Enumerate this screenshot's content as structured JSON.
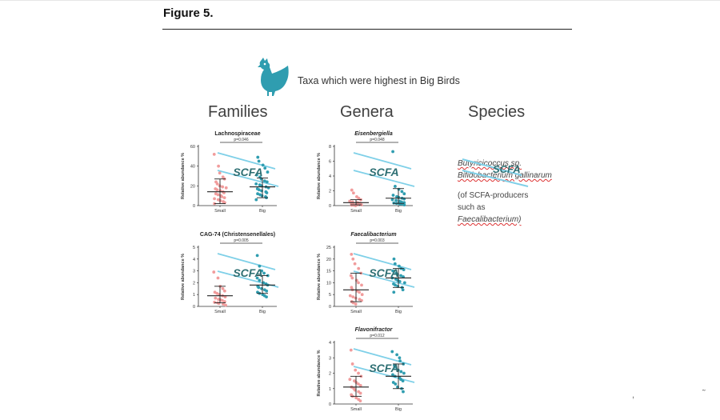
{
  "figure_label": "Figure 5.",
  "header": {
    "text": "Taxa which were highest in Big Birds",
    "icon": "chicken-icon"
  },
  "columns": {
    "families": "Families",
    "genera": "Genera",
    "species": "Species"
  },
  "species": {
    "line1": "Butyricicoccus sp.",
    "line2": "Bifidobacterium gallinarum",
    "overlay": "SCFA",
    "note1": "(of SCFA-producers",
    "note2": "such as",
    "note3": "Faecalibacterium)"
  },
  "colors": {
    "small": "#f19c9c",
    "big": "#2f9db0",
    "line": "#7fd0e8",
    "scfa_text": "#2e6f73",
    "header_gray": "#404040"
  },
  "chart_data": [
    {
      "type": "scatter",
      "title": "Lachnospiraceae",
      "title_italic": false,
      "pvalue": "p=0.046",
      "xlabel": "",
      "ylabel": "Relative abundance %",
      "ylim": [
        0,
        60
      ],
      "yticks": [
        0,
        20,
        40,
        60
      ],
      "categories": [
        "Small",
        "Big"
      ],
      "overlay": "SCFA",
      "summary": [
        {
          "name": "Small",
          "median": 14,
          "low": 2,
          "high": 27
        },
        {
          "name": "Big",
          "median": 19,
          "low": 8,
          "high": 28
        }
      ],
      "series": [
        {
          "name": "Small",
          "values": [
            52,
            40,
            33,
            29,
            27,
            24,
            22,
            20,
            19,
            18,
            17,
            16,
            15,
            14,
            13,
            12,
            11,
            10,
            9,
            8,
            7,
            6,
            5,
            4,
            3,
            2
          ]
        },
        {
          "name": "Big",
          "values": [
            49,
            45,
            41,
            38,
            34,
            31,
            29,
            27,
            25,
            24,
            22,
            21,
            20,
            19,
            18,
            17,
            16,
            15,
            14,
            13,
            12,
            11,
            10,
            9,
            8,
            6
          ]
        }
      ]
    },
    {
      "type": "scatter",
      "title": "CAG-74 (Christensenellales)",
      "title_italic": false,
      "pvalue": "p=0.005",
      "xlabel": "",
      "ylabel": "Relative abundance %",
      "ylim": [
        0,
        5
      ],
      "yticks": [
        0,
        1,
        2,
        3,
        4,
        5
      ],
      "categories": [
        "Small",
        "Big"
      ],
      "overlay": "SCFA",
      "summary": [
        {
          "name": "Small",
          "median": 0.9,
          "low": 0.3,
          "high": 1.7
        },
        {
          "name": "Big",
          "median": 1.8,
          "low": 1.1,
          "high": 2.6
        }
      ],
      "series": [
        {
          "name": "Small",
          "values": [
            2.9,
            2.4,
            1.7,
            1.5,
            1.3,
            1.2,
            1.1,
            1.0,
            0.9,
            0.8,
            0.7,
            0.6,
            0.55,
            0.5,
            0.4,
            0.35,
            0.3,
            0.25,
            0.2,
            0.1
          ]
        },
        {
          "name": "Big",
          "values": [
            4.3,
            3.4,
            3.0,
            2.8,
            2.6,
            2.4,
            2.2,
            2.0,
            1.9,
            1.8,
            1.7,
            1.6,
            1.5,
            1.4,
            1.3,
            1.2,
            1.1,
            1.0,
            0.9,
            0.8
          ]
        }
      ]
    },
    {
      "type": "scatter",
      "title": "Eisenbergiella",
      "title_italic": true,
      "pvalue": "p=0.048",
      "xlabel": "",
      "ylabel": "Relative abundance %",
      "ylim": [
        0,
        8
      ],
      "yticks": [
        0,
        2,
        4,
        6,
        8
      ],
      "categories": [
        "Small",
        "Big"
      ],
      "overlay": "SCFA",
      "summary": [
        {
          "name": "Small",
          "median": 0.4,
          "low": 0.1,
          "high": 0.8
        },
        {
          "name": "Big",
          "median": 1.0,
          "low": 0.3,
          "high": 2.3
        }
      ],
      "series": [
        {
          "name": "Small",
          "values": [
            2.1,
            1.7,
            1.2,
            1.0,
            0.8,
            0.6,
            0.5,
            0.4,
            0.35,
            0.3,
            0.25,
            0.2,
            0.15,
            0.1,
            0.1,
            0.05,
            0.05,
            0.0
          ]
        },
        {
          "name": "Big",
          "values": [
            7.3,
            2.6,
            2.2,
            1.9,
            1.6,
            1.4,
            1.2,
            1.1,
            1.0,
            0.9,
            0.8,
            0.7,
            0.6,
            0.5,
            0.4,
            0.35,
            0.3,
            0.25,
            0.2,
            0.1
          ]
        }
      ]
    },
    {
      "type": "scatter",
      "title": "Faecalibacterium",
      "title_italic": true,
      "pvalue": "p=0.003",
      "xlabel": "",
      "ylabel": "Relative abundance %",
      "ylim": [
        0,
        25
      ],
      "yticks": [
        0,
        5,
        10,
        15,
        20,
        25
      ],
      "categories": [
        "Small",
        "Big"
      ],
      "overlay": "SCFA",
      "summary": [
        {
          "name": "Small",
          "median": 7,
          "low": 2,
          "high": 14
        },
        {
          "name": "Big",
          "median": 12,
          "low": 8,
          "high": 16
        }
      ],
      "series": [
        {
          "name": "Small",
          "values": [
            22,
            20,
            18,
            16,
            14,
            13,
            12,
            11,
            10,
            9,
            8,
            7,
            6.5,
            6,
            5,
            4.5,
            4,
            3.5,
            3,
            2.5,
            2,
            1.5,
            1
          ]
        },
        {
          "name": "Big",
          "values": [
            20,
            18,
            17,
            16,
            15.5,
            15,
            14,
            13.5,
            13,
            12.5,
            12,
            11.5,
            11,
            10.5,
            10,
            9.5,
            9,
            8.5,
            8,
            7,
            6
          ]
        }
      ]
    },
    {
      "type": "scatter",
      "title": "Flavonifractor",
      "title_italic": true,
      "pvalue": "p=0.012",
      "xlabel": "",
      "ylabel": "Relative abundance %",
      "ylim": [
        0,
        4
      ],
      "yticks": [
        0,
        1,
        2,
        3,
        4
      ],
      "categories": [
        "Small",
        "Big"
      ],
      "overlay": "SCFA",
      "summary": [
        {
          "name": "Small",
          "median": 1.1,
          "low": 0.5,
          "high": 1.8
        },
        {
          "name": "Big",
          "median": 1.8,
          "low": 1.0,
          "high": 2.6
        }
      ],
      "series": [
        {
          "name": "Small",
          "values": [
            3.5,
            2.6,
            2.2,
            2.0,
            1.8,
            1.6,
            1.5,
            1.4,
            1.3,
            1.2,
            1.1,
            1.0,
            0.9,
            0.8,
            0.7,
            0.6,
            0.5,
            0.4,
            0.3,
            0.2
          ]
        },
        {
          "name": "Big",
          "values": [
            3.4,
            3.2,
            3.0,
            2.8,
            2.6,
            2.5,
            2.4,
            2.2,
            2.1,
            2.0,
            1.9,
            1.8,
            1.7,
            1.6,
            1.5,
            1.4,
            1.3,
            1.1,
            1.0,
            0.8
          ]
        }
      ]
    }
  ]
}
